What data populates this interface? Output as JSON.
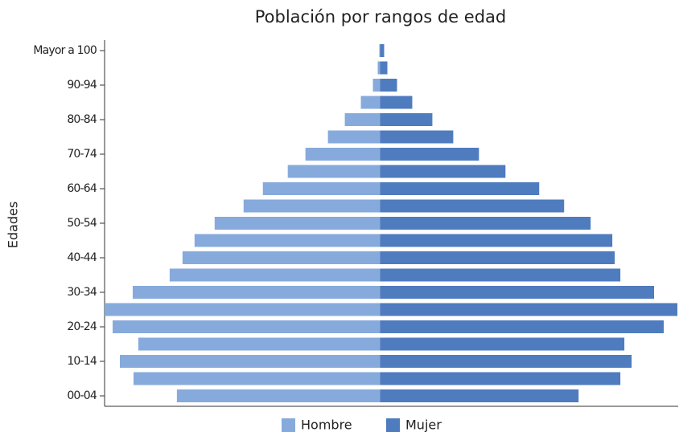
{
  "chart_data": {
    "type": "pyramid",
    "title": "Población por rangos de edad",
    "y_label": "Edades",
    "categories": [
      "00-04",
      null,
      "10-14",
      null,
      "20-24",
      null,
      "30-34",
      null,
      "40-44",
      null,
      "50-54",
      null,
      "60-64",
      null,
      "70-74",
      null,
      "80-84",
      null,
      "90-94",
      null,
      "Mayor a 100"
    ],
    "series": [
      {
        "name": "Hombre",
        "color": "#86aadc",
        "values": [
          253,
          307,
          324,
          301,
          333,
          343,
          308,
          262,
          246,
          231,
          206,
          170,
          146,
          115,
          93,
          65,
          44,
          24,
          9,
          3,
          1
        ]
      },
      {
        "name": "Mujer",
        "color": "#4f7bbf",
        "values": [
          247,
          299,
          313,
          304,
          353,
          370,
          341,
          299,
          292,
          289,
          262,
          229,
          198,
          156,
          123,
          91,
          65,
          40,
          21,
          9,
          5
        ]
      }
    ],
    "xlim": [
      -343,
      371
    ],
    "legend": "bottom"
  }
}
